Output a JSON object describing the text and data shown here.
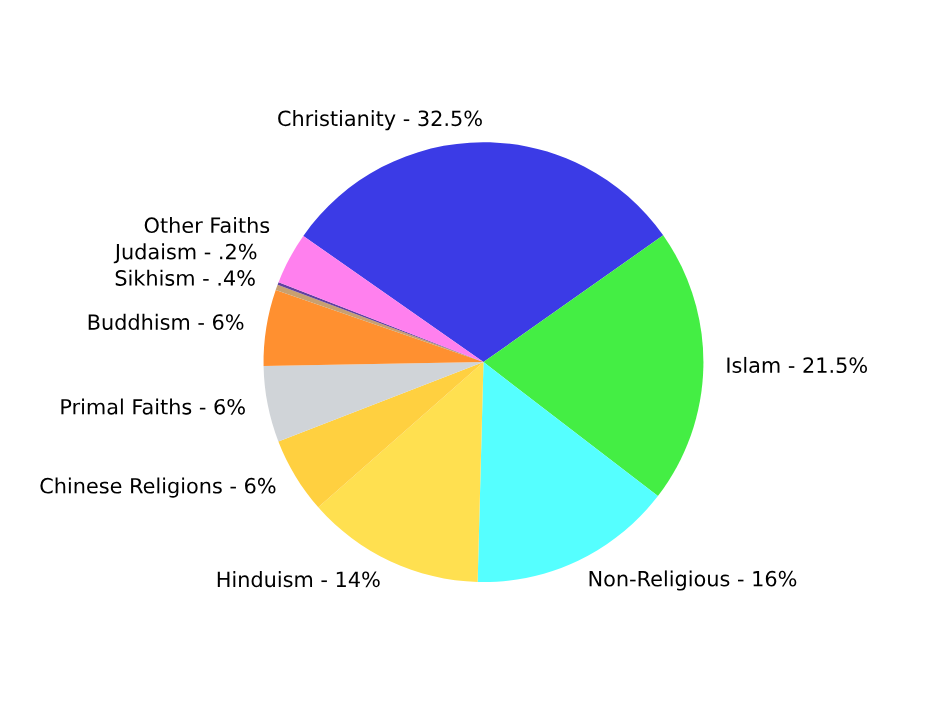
{
  "chart_data": {
    "type": "pie",
    "categories": [
      "Christianity - 32.5%",
      "Islam - 21.5%",
      "Non-Religious - 16%",
      "Hinduism - 14%",
      "Chinese Religions - 6%",
      "Primal Faiths - 6%",
      "Buddhism - 6%",
      "Sikhism - .4%",
      "Judaism - .2%",
      "Other Faiths"
    ],
    "values": [
      30.5,
      20.2,
      15,
      13.1,
      5.6,
      5.6,
      5.6,
      0.4,
      0.2,
      3.8
    ],
    "colors": [
      "#3b3be6",
      "#44ee44",
      "#55ffff",
      "#ffe050",
      "#ffd040",
      "#d0d4d8",
      "#ff9030",
      "#c8a070",
      "#6040a0",
      "#ff80ee"
    ]
  }
}
